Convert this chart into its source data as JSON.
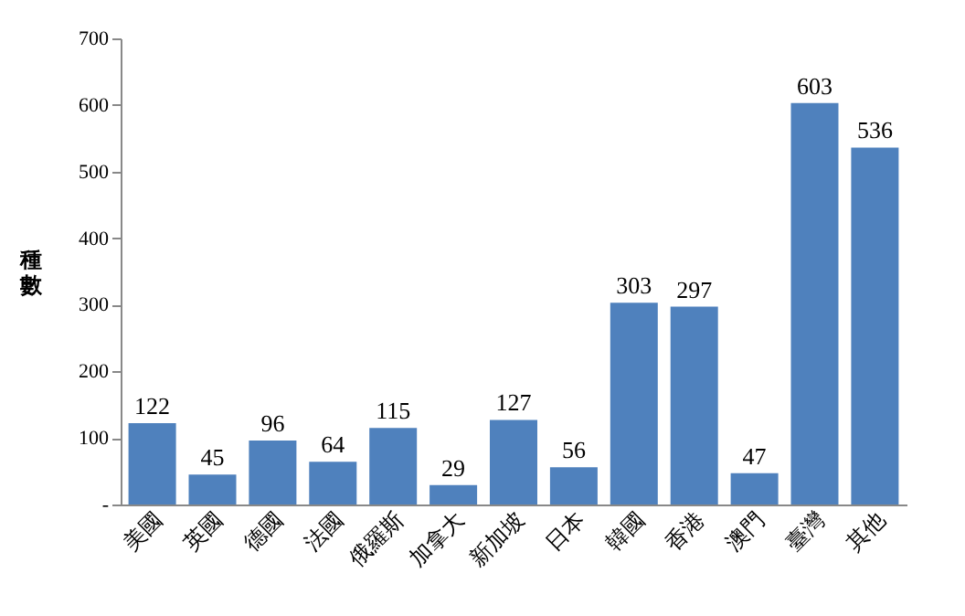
{
  "chart_data": {
    "type": "bar",
    "categories": [
      "美國",
      "英國",
      "德國",
      "法國",
      "俄羅斯",
      "加拿大",
      "新加坡",
      "日本",
      "韓國",
      "香港",
      "澳門",
      "臺灣",
      "其他"
    ],
    "values": [
      122,
      45,
      96,
      64,
      115,
      29,
      127,
      56,
      303,
      297,
      47,
      603,
      536
    ],
    "color": "#4f81bd",
    "ylabel": "種數",
    "ylim": [
      0,
      700
    ],
    "yticks": [
      {
        "value": 0,
        "label": "-"
      },
      100,
      200,
      300,
      400,
      500,
      600,
      700
    ],
    "data_labels": true,
    "grid": false
  }
}
